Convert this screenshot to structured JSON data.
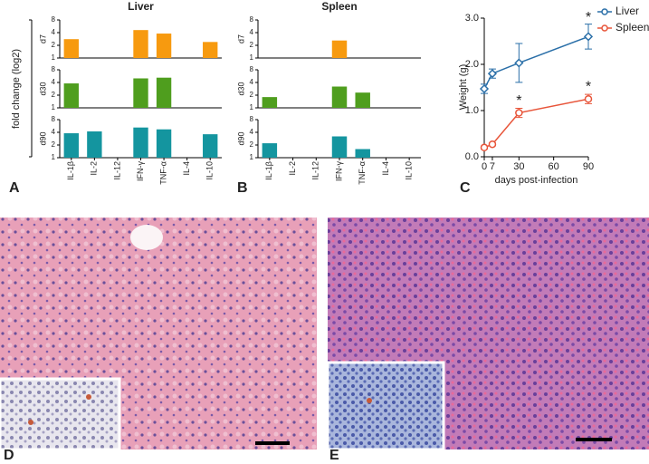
{
  "panel_labels": [
    "A",
    "B",
    "C",
    "D",
    "E"
  ],
  "chart_data": [
    {
      "type": "bar",
      "title": "Liver",
      "y_label": "fold change (log2)",
      "log_base": 2,
      "categories": [
        "IL-1β",
        "IL-2",
        "IL-12",
        "IFN-γ",
        "TNF-α",
        "IL-4",
        "IL-10"
      ],
      "ylim": [
        1,
        8
      ],
      "yticks": [
        1,
        2,
        4,
        8
      ],
      "series": [
        {
          "name": "d7",
          "color": "#f79a0f",
          "values": [
            2.8,
            null,
            null,
            4.6,
            3.8,
            null,
            2.4
          ]
        },
        {
          "name": "d30",
          "color": "#4f9e1e",
          "values": [
            3.8,
            null,
            null,
            5.0,
            5.2,
            null,
            null
          ]
        },
        {
          "name": "d90",
          "color": "#14959f",
          "values": [
            3.8,
            4.2,
            null,
            5.2,
            4.7,
            null,
            3.6
          ]
        }
      ]
    },
    {
      "type": "bar",
      "title": "Spleen",
      "log_base": 2,
      "categories": [
        "IL-1β",
        "IL-2",
        "IL-12",
        "IFN-γ",
        "TNF-α",
        "IL-4",
        "IL-10"
      ],
      "ylim": [
        1,
        8
      ],
      "yticks": [
        1,
        2,
        4,
        8
      ],
      "series": [
        {
          "name": "d7",
          "color": "#f79a0f",
          "values": [
            null,
            null,
            null,
            2.6,
            null,
            null,
            null
          ]
        },
        {
          "name": "d30",
          "color": "#4f9e1e",
          "values": [
            1.8,
            null,
            null,
            3.2,
            2.3,
            null,
            null
          ]
        },
        {
          "name": "d90",
          "color": "#14959f",
          "values": [
            2.2,
            null,
            null,
            3.2,
            1.6,
            null,
            null
          ]
        }
      ]
    },
    {
      "type": "line",
      "y_label": "Weight (g)",
      "x_label": "days post-infection",
      "xlim": [
        0,
        90
      ],
      "xticks": [
        0,
        7,
        30,
        60,
        90
      ],
      "ylim": [
        0,
        3
      ],
      "yticks": [
        {
          "value": 0,
          "label": "0.0"
        },
        {
          "value": 1,
          "label": "1.0"
        },
        {
          "value": 2,
          "label": "2.0"
        },
        {
          "value": 3,
          "label": "3.0"
        }
      ],
      "legend": "top-right",
      "series": [
        {
          "name": "Liver",
          "color": "#2a6fa8",
          "marker": "diamond",
          "x": [
            0,
            7,
            30,
            90
          ],
          "values": [
            1.47,
            1.8,
            2.03,
            2.6
          ],
          "errors": [
            0.1,
            0.1,
            0.42,
            0.27
          ]
        },
        {
          "name": "Spleen",
          "color": "#e8553a",
          "marker": "circle",
          "x": [
            0,
            7,
            30,
            90
          ],
          "values": [
            0.2,
            0.27,
            0.95,
            1.25
          ],
          "errors": [
            0.03,
            0.03,
            0.1,
            0.1
          ]
        }
      ],
      "annotations": [
        {
          "text": "*",
          "x": 30,
          "y": 1.2
        },
        {
          "text": "*",
          "x": 90,
          "y": 3.0
        },
        {
          "text": "*",
          "x": 90,
          "y": 1.5
        }
      ]
    }
  ]
}
